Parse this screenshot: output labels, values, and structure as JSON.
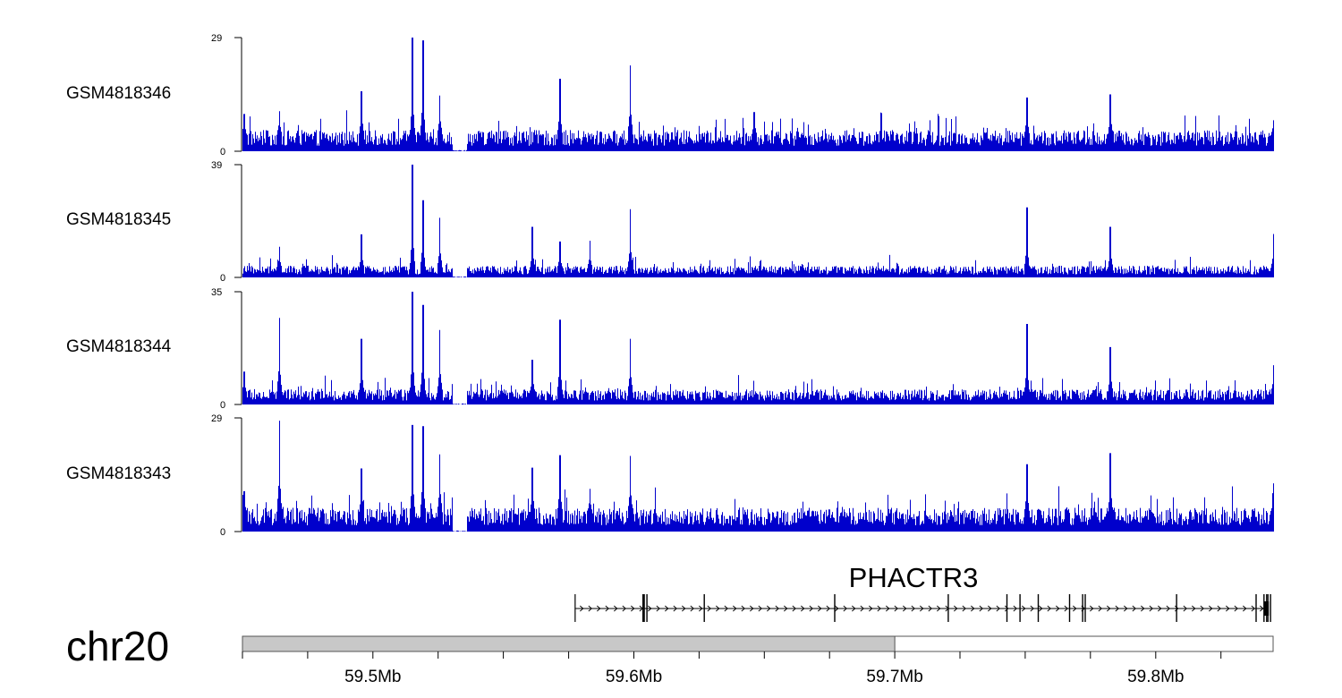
{
  "chart_data": {
    "type": "area",
    "x_range": [
      59.45,
      59.845
    ],
    "x_unit": "Mb",
    "series_color": "#0000cc",
    "tracks": [
      {
        "name": "GSM4818346",
        "ymax": 29,
        "ymin": 0,
        "baseline": 4,
        "peaks": [
          {
            "x": 59.4505,
            "y": 9.5
          },
          {
            "x": 59.464,
            "y": 10.2
          },
          {
            "x": 59.4955,
            "y": 15.3
          },
          {
            "x": 59.515,
            "y": 29
          },
          {
            "x": 59.519,
            "y": 28.3
          },
          {
            "x": 59.5255,
            "y": 14.2
          },
          {
            "x": 59.5715,
            "y": 18.5
          },
          {
            "x": 59.5985,
            "y": 21.9
          },
          {
            "x": 59.646,
            "y": 10
          },
          {
            "x": 59.7505,
            "y": 13.7
          },
          {
            "x": 59.7825,
            "y": 14.5
          },
          {
            "x": 59.845,
            "y": 7.9
          }
        ],
        "gaps": [
          [
            59.5305,
            59.536
          ]
        ]
      },
      {
        "name": "GSM4818345",
        "ymax": 39,
        "ymin": 0,
        "baseline": 3,
        "peaks": [
          {
            "x": 59.464,
            "y": 10.6
          },
          {
            "x": 59.4955,
            "y": 14.9
          },
          {
            "x": 59.515,
            "y": 39
          },
          {
            "x": 59.519,
            "y": 26.7
          },
          {
            "x": 59.5255,
            "y": 20.6
          },
          {
            "x": 59.561,
            "y": 17.5
          },
          {
            "x": 59.5715,
            "y": 12.4
          },
          {
            "x": 59.583,
            "y": 12.7
          },
          {
            "x": 59.5985,
            "y": 23.6
          },
          {
            "x": 59.7505,
            "y": 24.2
          },
          {
            "x": 59.7825,
            "y": 17.5
          },
          {
            "x": 59.845,
            "y": 15
          }
        ],
        "gaps": [
          [
            59.5305,
            59.536
          ]
        ]
      },
      {
        "name": "GSM4818344",
        "ymax": 35,
        "ymin": 0,
        "baseline": 3.5,
        "peaks": [
          {
            "x": 59.4505,
            "y": 10.2
          },
          {
            "x": 59.464,
            "y": 26.9
          },
          {
            "x": 59.4955,
            "y": 20.4
          },
          {
            "x": 59.515,
            "y": 35
          },
          {
            "x": 59.519,
            "y": 30.9
          },
          {
            "x": 59.5255,
            "y": 23.1
          },
          {
            "x": 59.561,
            "y": 13.9
          },
          {
            "x": 59.5715,
            "y": 26.3
          },
          {
            "x": 59.5985,
            "y": 20.4
          },
          {
            "x": 59.7505,
            "y": 25
          },
          {
            "x": 59.7825,
            "y": 17.8
          },
          {
            "x": 59.845,
            "y": 12.2
          }
        ],
        "gaps": [
          [
            59.5305,
            59.536
          ]
        ]
      },
      {
        "name": "GSM4818343",
        "ymax": 29,
        "ymin": 0,
        "baseline": 4.5,
        "peaks": [
          {
            "x": 59.4505,
            "y": 10.3
          },
          {
            "x": 59.464,
            "y": 28.3
          },
          {
            "x": 59.4955,
            "y": 16.1
          },
          {
            "x": 59.515,
            "y": 27.2
          },
          {
            "x": 59.519,
            "y": 26.9
          },
          {
            "x": 59.5255,
            "y": 19.7
          },
          {
            "x": 59.561,
            "y": 16.3
          },
          {
            "x": 59.5715,
            "y": 19.5
          },
          {
            "x": 59.583,
            "y": 10.9
          },
          {
            "x": 59.5985,
            "y": 19.3
          },
          {
            "x": 59.7505,
            "y": 17.2
          },
          {
            "x": 59.7825,
            "y": 20
          },
          {
            "x": 59.845,
            "y": 12.3
          }
        ],
        "gaps": [
          [
            59.5305,
            59.536
          ]
        ]
      }
    ],
    "gene": {
      "name": "PHACTR3",
      "start": 59.5775,
      "end": 59.8425,
      "strand": "+",
      "exons": [
        59.6035,
        59.604,
        59.605,
        59.627,
        59.677,
        59.7205,
        59.743,
        59.748,
        59.755,
        59.767,
        59.772,
        59.773,
        59.808,
        59.8385,
        59.8415,
        59.843,
        59.844
      ]
    },
    "chromosome": {
      "name": "chr20",
      "highlight": [
        59.45,
        59.7
      ]
    },
    "x_axis": {
      "ticks": [
        59.5,
        59.6,
        59.7,
        59.8
      ],
      "tick_labels": [
        "59.5Mb",
        "59.6Mb",
        "59.7Mb",
        "59.8Mb"
      ],
      "minor_step": 0.025
    }
  }
}
